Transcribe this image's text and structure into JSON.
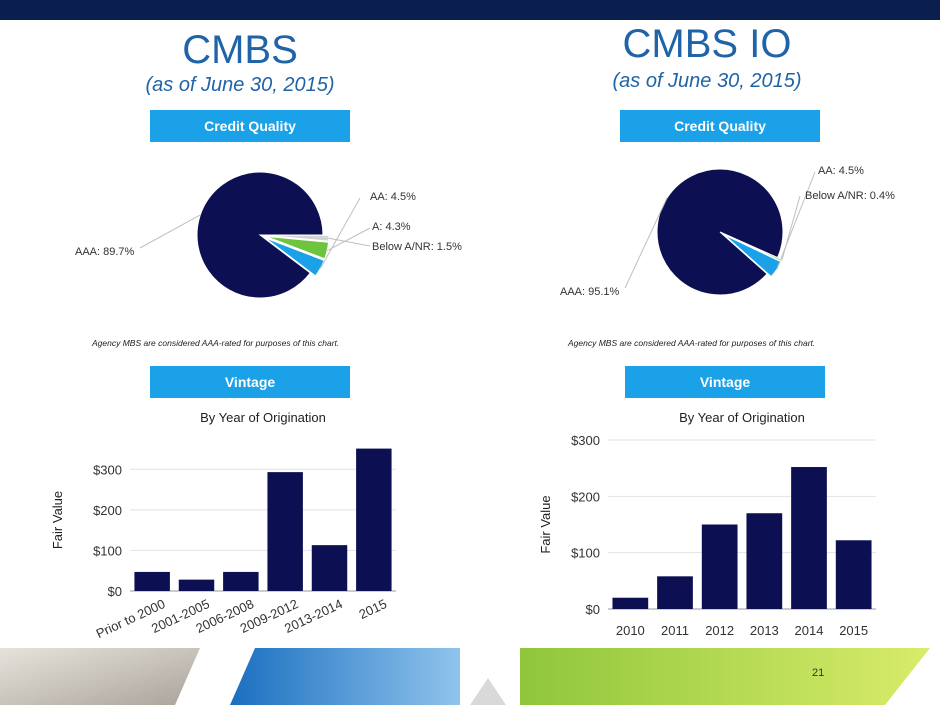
{
  "slide": {
    "page_number": "21"
  },
  "left_panel": {
    "title": "CMBS",
    "subtitle": "(as of June 30, 2015)",
    "credit_label": "Credit Quality",
    "note": "Agency MBS are considered AAA-rated for purposes of this chart.",
    "vintage_label": "Vintage"
  },
  "right_panel": {
    "title": "CMBS IO",
    "subtitle": "(as of June 30, 2015)",
    "credit_label": "Credit Quality",
    "note": "Agency MBS are considered AAA-rated for purposes of this chart.",
    "vintage_label": "Vintage"
  },
  "colors": {
    "navy": "#0c1052",
    "blue": "#1aa1e8",
    "green": "#6ec33f",
    "grey": "#d3d3d3",
    "accent": "#1f63a8"
  },
  "chart_data": [
    {
      "type": "pie",
      "slices": [
        {
          "label": "AAA: 89.7%",
          "value": 89.7,
          "color": "#0c1052"
        },
        {
          "label": "AA: 4.5%",
          "value": 4.5,
          "color": "#1aa1e8"
        },
        {
          "label": "A: 4.3%",
          "value": 4.3,
          "color": "#6ec33f"
        },
        {
          "label": "Below A/NR: 1.5%",
          "value": 1.5,
          "color": "#d3d3d3"
        }
      ]
    },
    {
      "type": "pie",
      "slices": [
        {
          "label": "AAA: 95.1%",
          "value": 95.1,
          "color": "#0c1052"
        },
        {
          "label": "AA: 4.5%",
          "value": 4.5,
          "color": "#1aa1e8"
        },
        {
          "label": "Below A/NR: 0.4%",
          "value": 0.4,
          "color": "#6ec33f"
        }
      ]
    },
    {
      "type": "bar",
      "title": "By Year of Origination",
      "ylabel": "Fair Value",
      "categories": [
        "Prior to 2000",
        "2001-2005",
        "2006-2008",
        "2009-2012",
        "2013-2014",
        "2015"
      ],
      "values": [
        47,
        28,
        47,
        293,
        113,
        351
      ],
      "ylim": [
        0,
        350
      ],
      "yticks": [
        "$0",
        "$100",
        "$200",
        "$300"
      ],
      "grid": true
    },
    {
      "type": "bar",
      "title": "By Year of Origination",
      "ylabel": "Fair Value",
      "categories": [
        "2010",
        "2011",
        "2012",
        "2013",
        "2014",
        "2015"
      ],
      "values": [
        20,
        58,
        150,
        170,
        252,
        122
      ],
      "ylim": [
        0,
        300
      ],
      "yticks": [
        "$0",
        "$100",
        "$200",
        "$300"
      ],
      "grid": true
    }
  ]
}
